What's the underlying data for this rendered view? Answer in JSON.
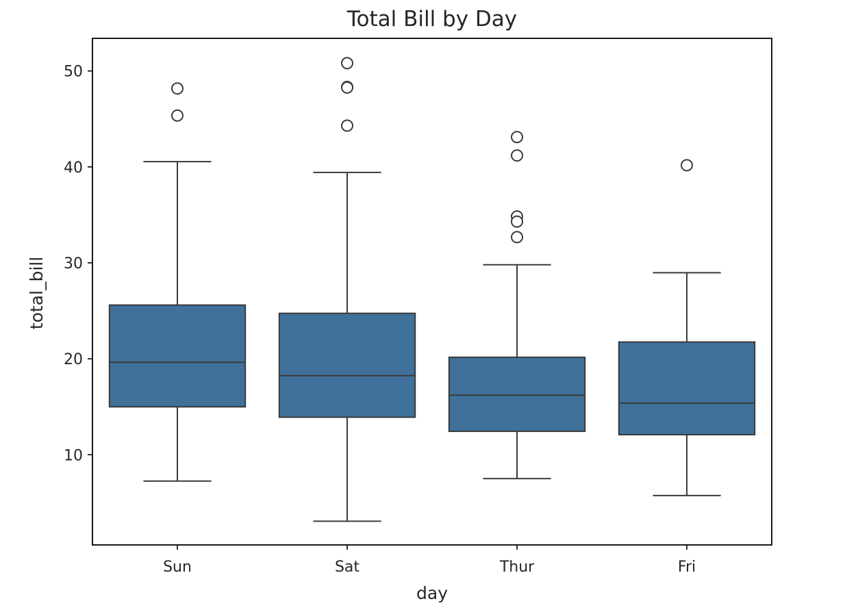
{
  "chart_data": {
    "type": "box",
    "title": "Total Bill by Day",
    "xlabel": "day",
    "ylabel": "total_bill",
    "categories": [
      "Sun",
      "Sat",
      "Thur",
      "Fri"
    ],
    "ylim": [
      0.6,
      53.4
    ],
    "yticks": [
      10,
      20,
      30,
      40,
      50
    ],
    "ytick_labels": [
      "10",
      "20",
      "30",
      "40",
      "50"
    ],
    "grid": false,
    "legend": "none",
    "box_color": "#3f719a",
    "line_color": "#3a3a3a",
    "boxes": [
      {
        "category": "Sun",
        "whisker_low": 7.25,
        "q1": 14.99,
        "median": 19.63,
        "q3": 25.6,
        "whisker_high": 40.55,
        "outliers": [
          48.17,
          45.35
        ]
      },
      {
        "category": "Sat",
        "whisker_low": 3.07,
        "q1": 13.91,
        "median": 18.24,
        "q3": 24.74,
        "whisker_high": 39.42,
        "outliers": [
          50.81,
          48.33,
          48.27,
          44.3
        ]
      },
      {
        "category": "Thur",
        "whisker_low": 7.51,
        "q1": 12.44,
        "median": 16.2,
        "q3": 20.16,
        "whisker_high": 29.8,
        "outliers": [
          43.11,
          41.19,
          34.83,
          34.3,
          32.68
        ]
      },
      {
        "category": "Fri",
        "whisker_low": 5.75,
        "q1": 12.09,
        "median": 15.38,
        "q3": 21.75,
        "whisker_high": 28.97,
        "outliers": [
          40.17
        ]
      }
    ]
  }
}
